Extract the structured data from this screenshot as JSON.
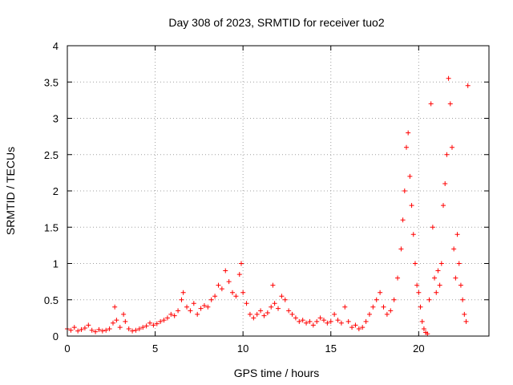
{
  "chart_data": {
    "type": "scatter",
    "title": "Day 308 of 2023, SRMTID for receiver tuo2",
    "xlabel": "GPS time / hours",
    "ylabel": "SRMTID / TECUs",
    "xlim": [
      0,
      24
    ],
    "ylim": [
      0,
      4
    ],
    "xticks": [
      0,
      5,
      10,
      15,
      20
    ],
    "xtick_labels": [
      "0",
      "5",
      "10",
      "15",
      "20"
    ],
    "yticks": [
      0,
      0.5,
      1,
      1.5,
      2,
      2.5,
      3,
      3.5,
      4
    ],
    "ytick_labels": [
      "0",
      "0.5",
      "1",
      "1.5",
      "2",
      "2.5",
      "3",
      "3.5",
      "4"
    ],
    "grid": true,
    "marker": "+",
    "series": [
      {
        "name": "SRMTID",
        "color": "#ff0000",
        "points": [
          [
            0.0,
            0.1
          ],
          [
            0.2,
            0.08
          ],
          [
            0.4,
            0.12
          ],
          [
            0.6,
            0.07
          ],
          [
            0.8,
            0.09
          ],
          [
            1.0,
            0.11
          ],
          [
            1.2,
            0.15
          ],
          [
            1.4,
            0.08
          ],
          [
            1.6,
            0.06
          ],
          [
            1.8,
            0.09
          ],
          [
            2.0,
            0.07
          ],
          [
            2.2,
            0.08
          ],
          [
            2.4,
            0.1
          ],
          [
            2.6,
            0.18
          ],
          [
            2.7,
            0.4
          ],
          [
            2.8,
            0.22
          ],
          [
            3.0,
            0.12
          ],
          [
            3.2,
            0.3
          ],
          [
            3.3,
            0.2
          ],
          [
            3.5,
            0.1
          ],
          [
            3.7,
            0.07
          ],
          [
            3.9,
            0.08
          ],
          [
            4.1,
            0.1
          ],
          [
            4.3,
            0.12
          ],
          [
            4.5,
            0.14
          ],
          [
            4.7,
            0.18
          ],
          [
            4.9,
            0.15
          ],
          [
            5.1,
            0.17
          ],
          [
            5.3,
            0.2
          ],
          [
            5.5,
            0.22
          ],
          [
            5.7,
            0.25
          ],
          [
            5.9,
            0.3
          ],
          [
            6.1,
            0.28
          ],
          [
            6.3,
            0.35
          ],
          [
            6.5,
            0.5
          ],
          [
            6.6,
            0.6
          ],
          [
            6.8,
            0.4
          ],
          [
            7.0,
            0.35
          ],
          [
            7.2,
            0.45
          ],
          [
            7.4,
            0.3
          ],
          [
            7.6,
            0.38
          ],
          [
            7.8,
            0.42
          ],
          [
            8.0,
            0.4
          ],
          [
            8.2,
            0.5
          ],
          [
            8.4,
            0.55
          ],
          [
            8.6,
            0.7
          ],
          [
            8.8,
            0.65
          ],
          [
            9.0,
            0.9
          ],
          [
            9.2,
            0.75
          ],
          [
            9.4,
            0.6
          ],
          [
            9.6,
            0.55
          ],
          [
            9.8,
            0.85
          ],
          [
            9.9,
            1.0
          ],
          [
            10.0,
            0.6
          ],
          [
            10.2,
            0.45
          ],
          [
            10.4,
            0.3
          ],
          [
            10.6,
            0.25
          ],
          [
            10.8,
            0.3
          ],
          [
            11.0,
            0.35
          ],
          [
            11.2,
            0.28
          ],
          [
            11.4,
            0.32
          ],
          [
            11.6,
            0.4
          ],
          [
            11.7,
            0.7
          ],
          [
            11.8,
            0.45
          ],
          [
            12.0,
            0.38
          ],
          [
            12.2,
            0.55
          ],
          [
            12.4,
            0.5
          ],
          [
            12.6,
            0.35
          ],
          [
            12.8,
            0.3
          ],
          [
            13.0,
            0.25
          ],
          [
            13.2,
            0.2
          ],
          [
            13.4,
            0.22
          ],
          [
            13.6,
            0.18
          ],
          [
            13.8,
            0.2
          ],
          [
            14.0,
            0.15
          ],
          [
            14.2,
            0.2
          ],
          [
            14.4,
            0.25
          ],
          [
            14.6,
            0.22
          ],
          [
            14.8,
            0.18
          ],
          [
            15.0,
            0.2
          ],
          [
            15.2,
            0.3
          ],
          [
            15.4,
            0.22
          ],
          [
            15.6,
            0.18
          ],
          [
            15.8,
            0.4
          ],
          [
            16.0,
            0.2
          ],
          [
            16.2,
            0.12
          ],
          [
            16.4,
            0.15
          ],
          [
            16.6,
            0.1
          ],
          [
            16.8,
            0.12
          ],
          [
            17.0,
            0.2
          ],
          [
            17.2,
            0.3
          ],
          [
            17.4,
            0.4
          ],
          [
            17.6,
            0.5
          ],
          [
            17.8,
            0.6
          ],
          [
            18.0,
            0.4
          ],
          [
            18.2,
            0.3
          ],
          [
            18.4,
            0.35
          ],
          [
            18.6,
            0.5
          ],
          [
            18.8,
            0.8
          ],
          [
            19.0,
            1.2
          ],
          [
            19.1,
            1.6
          ],
          [
            19.2,
            2.0
          ],
          [
            19.3,
            2.6
          ],
          [
            19.4,
            2.8
          ],
          [
            19.5,
            2.2
          ],
          [
            19.6,
            1.8
          ],
          [
            19.7,
            1.4
          ],
          [
            19.8,
            1.0
          ],
          [
            19.9,
            0.7
          ],
          [
            20.0,
            0.6
          ],
          [
            20.1,
            0.4
          ],
          [
            20.2,
            0.2
          ],
          [
            20.3,
            0.1
          ],
          [
            20.4,
            0.05
          ],
          [
            20.5,
            0.03
          ],
          [
            20.6,
            0.5
          ],
          [
            20.7,
            3.2
          ],
          [
            20.8,
            1.5
          ],
          [
            20.9,
            0.8
          ],
          [
            21.0,
            0.6
          ],
          [
            21.1,
            0.9
          ],
          [
            21.2,
            0.7
          ],
          [
            21.3,
            1.0
          ],
          [
            21.4,
            1.8
          ],
          [
            21.5,
            2.1
          ],
          [
            21.6,
            2.5
          ],
          [
            21.7,
            3.55
          ],
          [
            21.8,
            3.2
          ],
          [
            21.9,
            2.6
          ],
          [
            22.0,
            1.2
          ],
          [
            22.1,
            0.8
          ],
          [
            22.2,
            1.4
          ],
          [
            22.3,
            1.0
          ],
          [
            22.4,
            0.7
          ],
          [
            22.5,
            0.5
          ],
          [
            22.6,
            0.3
          ],
          [
            22.7,
            0.2
          ],
          [
            22.8,
            3.45
          ]
        ]
      }
    ]
  }
}
